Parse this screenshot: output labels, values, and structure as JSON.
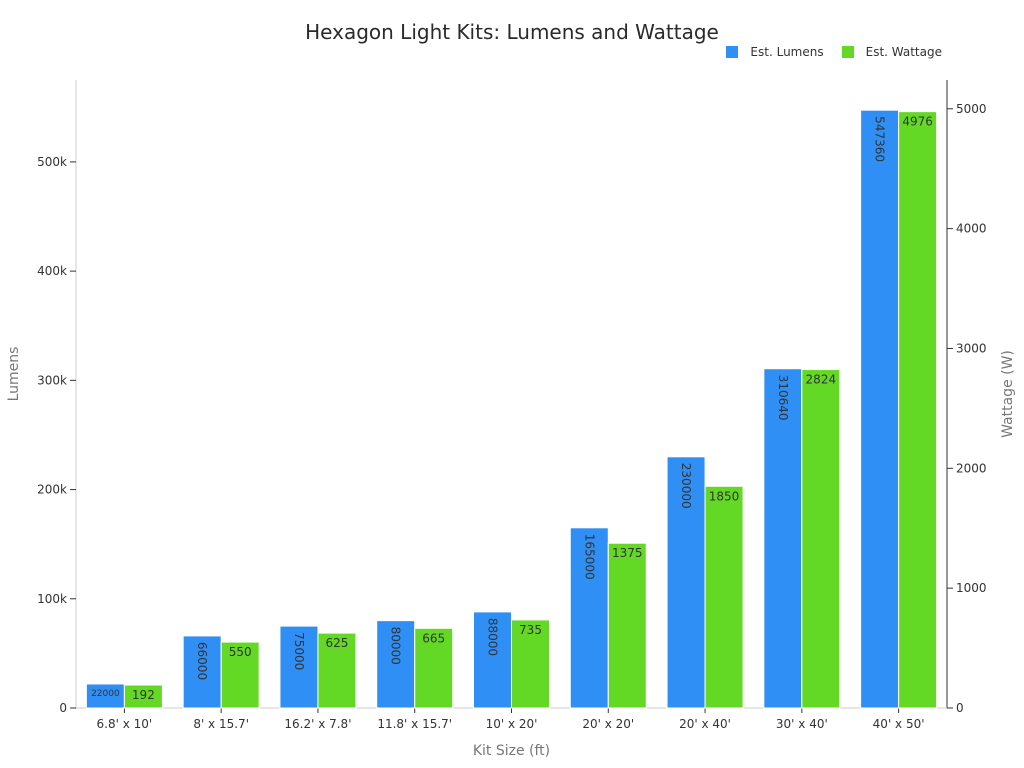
{
  "chart_data": {
    "type": "bar",
    "title": "Hexagon Light Kits: Lumens and Wattage",
    "xlabel": "Kit Size (ft)",
    "ylabel": "Lumens",
    "y2label": "Wattage (W)",
    "categories": [
      "6.8' x 10'",
      "8' x 15.7'",
      "16.2' x 7.8'",
      "11.8' x 15.7'",
      "10' x 20'",
      "20' x 20'",
      "20' x 40'",
      "30' x 40'",
      "40' x 50'"
    ],
    "series": [
      {
        "name": "Est. Lumens",
        "axis": "left",
        "color": "#2f8ff5",
        "values": [
          22000,
          66000,
          75000,
          80000,
          88000,
          165000,
          230000,
          310640,
          547360
        ]
      },
      {
        "name": "Est. Wattage",
        "axis": "right",
        "color": "#63d926",
        "values": [
          192,
          550,
          625,
          665,
          735,
          1375,
          1850,
          2824,
          4976
        ]
      }
    ],
    "ylim": [
      0,
      575000
    ],
    "y2lim": [
      0,
      5240
    ],
    "yticks": [
      0,
      100000,
      200000,
      300000,
      400000,
      500000
    ],
    "ytick_labels": [
      "0",
      "100k",
      "200k",
      "300k",
      "400k",
      "500k"
    ],
    "y2ticks": [
      0,
      1000,
      2000,
      3000,
      4000,
      5000
    ],
    "y2tick_labels": [
      "0",
      "1000",
      "2000",
      "3000",
      "4000",
      "5000"
    ],
    "legend_position": "top-right",
    "grid": false
  }
}
